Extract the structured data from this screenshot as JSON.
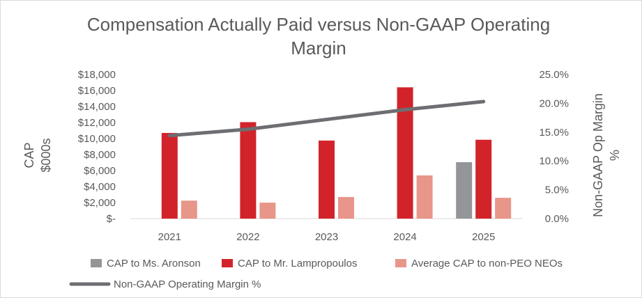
{
  "chart_data": {
    "type": "bar",
    "title_lines": [
      "Compensation Actually Paid versus Non-GAAP Operating",
      "Margin"
    ],
    "categories": [
      "2021",
      "2022",
      "2023",
      "2024",
      "2025"
    ],
    "ylabel_lines": [
      "CAP",
      "$000s"
    ],
    "y2label_lines": [
      "Non-GAAP Op Margin",
      "%"
    ],
    "ylim": [
      0,
      18000
    ],
    "y_ticks": [
      0,
      2000,
      4000,
      6000,
      8000,
      10000,
      12000,
      14000,
      16000,
      18000
    ],
    "y_tick_labels": [
      "$-",
      "$2,000",
      "$4,000",
      "$6,000",
      "$8,000",
      "$10,000",
      "$12,000",
      "$14,000",
      "$16,000",
      "$18,000"
    ],
    "y2lim": [
      0,
      25
    ],
    "y2_ticks": [
      0,
      5,
      10,
      15,
      20,
      25
    ],
    "y2_tick_labels": [
      "0.0%",
      "5.0%",
      "10.0%",
      "15.0%",
      "20.0%",
      "25.0%"
    ],
    "series": [
      {
        "name": "CAP to Ms. Aronson",
        "type": "bar",
        "axis": "left",
        "color": "#939598",
        "values": [
          null,
          null,
          null,
          null,
          7050
        ]
      },
      {
        "name": "CAP to Mr. Lampropoulos",
        "type": "bar",
        "axis": "left",
        "color": "#d2232a",
        "values": [
          10700,
          12050,
          9750,
          16400,
          9850
        ]
      },
      {
        "name": "Average CAP to non-PEO NEOs",
        "type": "bar",
        "axis": "left",
        "color": "#e8968a",
        "values": [
          2250,
          2000,
          2700,
          5400,
          2600
        ]
      },
      {
        "name": "Non-GAAP Operating Margin %",
        "type": "line",
        "axis": "right",
        "color": "#6d6e71",
        "values": [
          14.4,
          15.5,
          null,
          18.9,
          20.3
        ]
      }
    ],
    "grid": false,
    "legend_position": "bottom"
  }
}
